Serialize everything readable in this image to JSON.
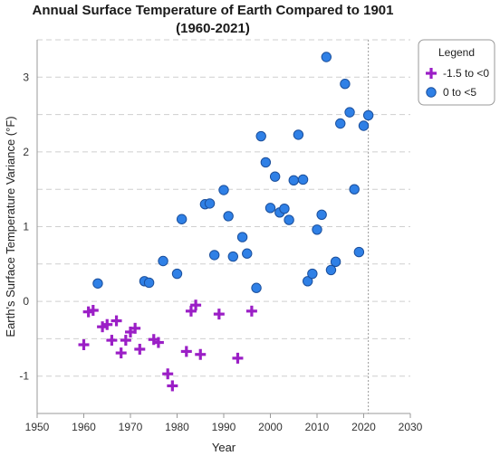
{
  "chart_data": {
    "type": "scatter",
    "title_line1": "Annual Surface Temperature of Earth Compared to 1901",
    "title_line2": "(1960-2021)",
    "xlabel": "Year",
    "ylabel": "Earth's Surface Temperature Variance (°F)",
    "xlim": [
      1950,
      2030
    ],
    "ylim": [
      -1.5,
      3.5
    ],
    "x_ticks": [
      1950,
      1960,
      1970,
      1980,
      1990,
      2000,
      2010,
      2020,
      2030
    ],
    "y_ticks": [
      -1,
      0,
      1,
      2,
      3
    ],
    "grid": "horizontal dashed",
    "reference_line_x": 2021,
    "legend": {
      "title": "Legend",
      "placement": "top-right",
      "entries": [
        {
          "label": "-1.5 to <0",
          "marker": "plus",
          "color": "#9b1fc6"
        },
        {
          "label": "0 to <5",
          "marker": "circle",
          "color": "#2f80e6"
        }
      ]
    },
    "series": [
      {
        "name": "-1.5 to <0",
        "marker": "plus",
        "color": "#9b1fc6",
        "points": [
          [
            1960,
            -0.58
          ],
          [
            1961,
            -0.14
          ],
          [
            1962,
            -0.12
          ],
          [
            1964,
            -0.34
          ],
          [
            1965,
            -0.31
          ],
          [
            1966,
            -0.52
          ],
          [
            1967,
            -0.26
          ],
          [
            1968,
            -0.69
          ],
          [
            1969,
            -0.52
          ],
          [
            1970,
            -0.41
          ],
          [
            1971,
            -0.36
          ],
          [
            1972,
            -0.64
          ],
          [
            1975,
            -0.51
          ],
          [
            1976,
            -0.55
          ],
          [
            1978,
            -0.97
          ],
          [
            1979,
            -1.13
          ],
          [
            1982,
            -0.67
          ],
          [
            1983,
            -0.13
          ],
          [
            1984,
            -0.05
          ],
          [
            1985,
            -0.71
          ],
          [
            1989,
            -0.17
          ],
          [
            1993,
            -0.76
          ],
          [
            1996,
            -0.13
          ]
        ]
      },
      {
        "name": "0 to <5",
        "marker": "circle",
        "color": "#2f80e6",
        "points": [
          [
            1963,
            0.24
          ],
          [
            1973,
            0.27
          ],
          [
            1974,
            0.25
          ],
          [
            1977,
            0.54
          ],
          [
            1980,
            0.37
          ],
          [
            1981,
            1.1
          ],
          [
            1986,
            1.3
          ],
          [
            1987,
            1.31
          ],
          [
            1988,
            0.62
          ],
          [
            1990,
            1.49
          ],
          [
            1991,
            1.14
          ],
          [
            1992,
            0.6
          ],
          [
            1994,
            0.86
          ],
          [
            1995,
            0.64
          ],
          [
            1997,
            0.18
          ],
          [
            1998,
            2.21
          ],
          [
            1999,
            1.86
          ],
          [
            2000,
            1.25
          ],
          [
            2001,
            1.67
          ],
          [
            2002,
            1.19
          ],
          [
            2003,
            1.24
          ],
          [
            2004,
            1.09
          ],
          [
            2005,
            1.62
          ],
          [
            2006,
            2.23
          ],
          [
            2007,
            1.63
          ],
          [
            2008,
            0.27
          ],
          [
            2009,
            0.37
          ],
          [
            2010,
            0.96
          ],
          [
            2011,
            1.16
          ],
          [
            2012,
            3.27
          ],
          [
            2013,
            0.42
          ],
          [
            2014,
            0.53
          ],
          [
            2015,
            2.38
          ],
          [
            2016,
            2.91
          ],
          [
            2017,
            2.53
          ],
          [
            2018,
            1.5
          ],
          [
            2019,
            0.66
          ],
          [
            2020,
            2.35
          ],
          [
            2021,
            2.49
          ]
        ]
      }
    ]
  }
}
